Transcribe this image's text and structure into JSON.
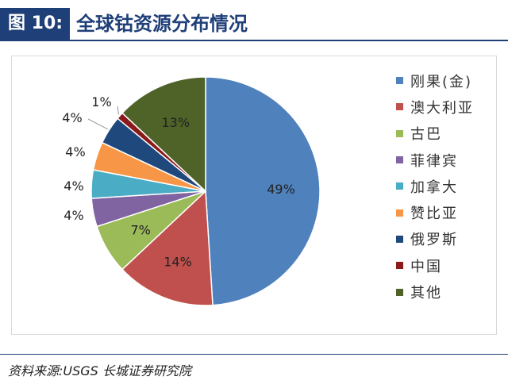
{
  "header": {
    "figure_label": "图 10:",
    "title": "全球钴资源分布情况"
  },
  "source_text": "资料来源:USGS 长城证券研究院",
  "chart_data": {
    "type": "pie",
    "title": "",
    "categories": [
      "刚果(金)",
      "澳大利亚",
      "古巴",
      "菲律宾",
      "加拿大",
      "赞比亚",
      "俄罗斯",
      "中国",
      "其他"
    ],
    "values": [
      49,
      14,
      7,
      4,
      4,
      4,
      4,
      1,
      13
    ],
    "labels": [
      "49%",
      "14%",
      "7%",
      "4%",
      "4%",
      "4%",
      "4%",
      "1%",
      "13%"
    ],
    "colors": [
      "#4f81bd",
      "#c0504d",
      "#9bbb59",
      "#8064a2",
      "#4bacc6",
      "#f79646",
      "#1f497d",
      "#8b1a1a",
      "#4f6228"
    ],
    "legend_position": "right"
  }
}
